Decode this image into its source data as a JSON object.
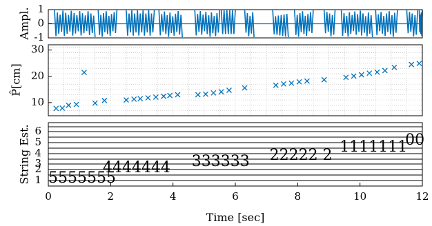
{
  "chart_data": [
    {
      "type": "line",
      "ylabel": "Ampl.",
      "ylim": [
        -1,
        1
      ],
      "xlim": [
        0,
        12
      ],
      "yticks": [
        "1",
        "0",
        "-1"
      ],
      "series_color": "#0072BD",
      "segments": [
        {
          "start": 0.2,
          "end": 1.5
        },
        {
          "start": 1.6,
          "end": 2.2
        },
        {
          "start": 2.5,
          "end": 3.4
        },
        {
          "start": 3.55,
          "end": 4.3
        },
        {
          "start": 4.7,
          "end": 5.5
        },
        {
          "start": 5.55,
          "end": 6.0
        },
        {
          "start": 6.3,
          "end": 6.6
        },
        {
          "start": 7.2,
          "end": 7.7
        },
        {
          "start": 7.9,
          "end": 8.5
        },
        {
          "start": 8.85,
          "end": 9.2
        },
        {
          "start": 9.4,
          "end": 10.4
        },
        {
          "start": 10.5,
          "end": 11.2
        },
        {
          "start": 11.5,
          "end": 11.85
        },
        {
          "start": 11.9,
          "end": 12.0
        }
      ]
    },
    {
      "type": "scatter",
      "ylabel": "P̂[cm]",
      "ylim": [
        5,
        32
      ],
      "xlim": [
        0,
        12
      ],
      "yticks": [
        10,
        20,
        30
      ],
      "grid": true,
      "marker": "x",
      "marker_color": "#0072BD",
      "points": [
        {
          "x": 0.25,
          "y": 7.8
        },
        {
          "x": 0.45,
          "y": 7.9
        },
        {
          "x": 0.65,
          "y": 9.0
        },
        {
          "x": 0.9,
          "y": 9.3
        },
        {
          "x": 1.15,
          "y": 21.5
        },
        {
          "x": 1.5,
          "y": 9.8
        },
        {
          "x": 1.8,
          "y": 10.8
        },
        {
          "x": 2.5,
          "y": 11.0
        },
        {
          "x": 2.75,
          "y": 11.3
        },
        {
          "x": 2.95,
          "y": 11.5
        },
        {
          "x": 3.2,
          "y": 11.8
        },
        {
          "x": 3.45,
          "y": 12.1
        },
        {
          "x": 3.7,
          "y": 12.4
        },
        {
          "x": 3.9,
          "y": 12.7
        },
        {
          "x": 4.15,
          "y": 13.0
        },
        {
          "x": 4.8,
          "y": 13.0
        },
        {
          "x": 5.05,
          "y": 13.2
        },
        {
          "x": 5.3,
          "y": 13.7
        },
        {
          "x": 5.55,
          "y": 14.1
        },
        {
          "x": 5.8,
          "y": 14.7
        },
        {
          "x": 6.3,
          "y": 15.6
        },
        {
          "x": 7.3,
          "y": 16.6
        },
        {
          "x": 7.55,
          "y": 17.1
        },
        {
          "x": 7.8,
          "y": 17.4
        },
        {
          "x": 8.05,
          "y": 17.9
        },
        {
          "x": 8.3,
          "y": 18.2
        },
        {
          "x": 8.85,
          "y": 18.7
        },
        {
          "x": 9.55,
          "y": 19.6
        },
        {
          "x": 9.8,
          "y": 20.1
        },
        {
          "x": 10.05,
          "y": 20.6
        },
        {
          "x": 10.3,
          "y": 21.2
        },
        {
          "x": 10.55,
          "y": 21.6
        },
        {
          "x": 10.8,
          "y": 22.2
        },
        {
          "x": 11.1,
          "y": 23.4
        },
        {
          "x": 11.65,
          "y": 24.5
        },
        {
          "x": 11.9,
          "y": 24.9
        }
      ]
    },
    {
      "type": "table",
      "ylabel": "String Est.",
      "xlabel": "Time [sec]",
      "xlim": [
        0,
        12
      ],
      "xticks": [
        0,
        2,
        4,
        6,
        8,
        10,
        12
      ],
      "yticks": [
        "1",
        "2",
        "3",
        "4",
        "5",
        "6"
      ],
      "line_color": "#000000",
      "annotations": [
        {
          "text": "5555555",
          "x": 0.0,
          "y": 1
        },
        {
          "text": "4444444",
          "x": 1.75,
          "y": 2
        },
        {
          "text": "33333",
          "x": 4.6,
          "y": 3
        },
        {
          "text": "3",
          "x": 6.15,
          "y": 3
        },
        {
          "text": "22222",
          "x": 7.1,
          "y": 4
        },
        {
          "text": "2",
          "x": 8.8,
          "y": 4
        },
        {
          "text": "1111111",
          "x": 9.35,
          "y": 5
        },
        {
          "text": "00",
          "x": 11.45,
          "y": 6
        }
      ]
    }
  ]
}
